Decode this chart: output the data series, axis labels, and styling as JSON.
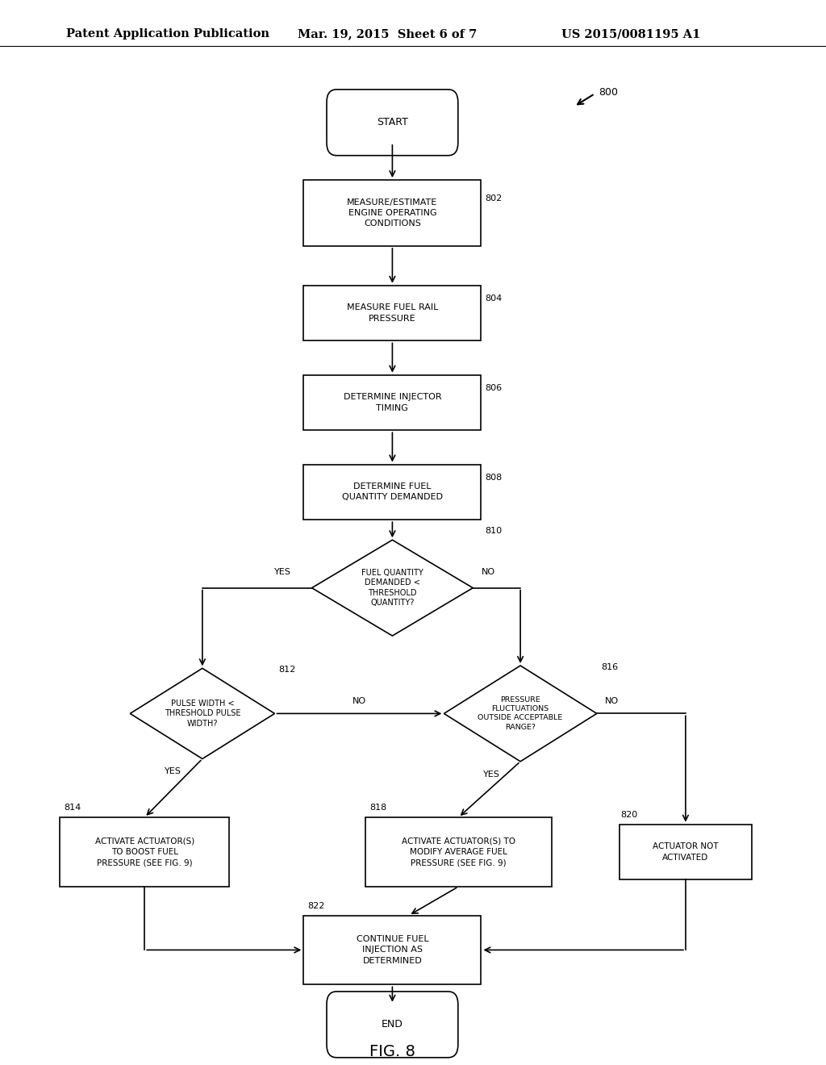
{
  "title_left": "Patent Application Publication",
  "title_mid": "Mar. 19, 2015  Sheet 6 of 7",
  "title_right": "US 2015/0081195 A1",
  "fig_label": "FIG. 8",
  "fig_number": "800",
  "background_color": "#ffffff"
}
